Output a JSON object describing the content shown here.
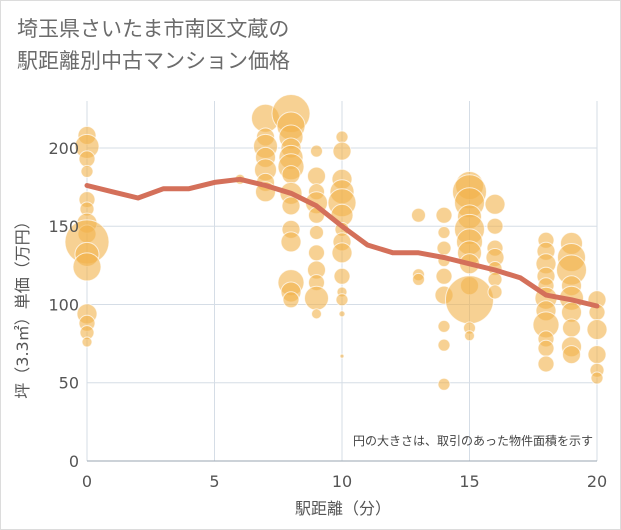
{
  "title_lines": [
    "埼玉県さいたま市南区文蔵の",
    "駅距離別中古マンション価格"
  ],
  "chart_data": {
    "type": "scatter",
    "xlabel": "駅距離（分）",
    "ylabel": "坪（3.3㎡）単価（万円）",
    "xlim": [
      0,
      20
    ],
    "ylim": [
      0,
      230
    ],
    "x_ticks": [
      0,
      5,
      10,
      15,
      20
    ],
    "y_ticks": [
      0,
      50,
      100,
      150,
      200
    ],
    "grid": true,
    "annotation": "円の大きさは、取引のあった物件面積を示す",
    "bubble_color": "#f2b24b",
    "line_color": "#d4705a",
    "points": [
      {
        "x": 0,
        "y": 208,
        "s": 9
      },
      {
        "x": 0,
        "y": 201,
        "s": 12
      },
      {
        "x": 0,
        "y": 193,
        "s": 8
      },
      {
        "x": 0,
        "y": 185,
        "s": 6
      },
      {
        "x": 0,
        "y": 167,
        "s": 8
      },
      {
        "x": 0,
        "y": 161,
        "s": 7
      },
      {
        "x": 0,
        "y": 152,
        "s": 10
      },
      {
        "x": 0,
        "y": 145,
        "s": 9
      },
      {
        "x": 0,
        "y": 140,
        "s": 22
      },
      {
        "x": 0,
        "y": 132,
        "s": 12
      },
      {
        "x": 0,
        "y": 124,
        "s": 14
      },
      {
        "x": 0,
        "y": 94,
        "s": 10
      },
      {
        "x": 0,
        "y": 88,
        "s": 8
      },
      {
        "x": 0,
        "y": 82,
        "s": 7
      },
      {
        "x": 0,
        "y": 76,
        "s": 5
      },
      {
        "x": 6,
        "y": 180,
        "s": 5
      },
      {
        "x": 7,
        "y": 219,
        "s": 14
      },
      {
        "x": 7,
        "y": 207,
        "s": 9
      },
      {
        "x": 7,
        "y": 201,
        "s": 12
      },
      {
        "x": 7,
        "y": 194,
        "s": 10
      },
      {
        "x": 7,
        "y": 186,
        "s": 11
      },
      {
        "x": 7,
        "y": 178,
        "s": 9
      },
      {
        "x": 7,
        "y": 172,
        "s": 10
      },
      {
        "x": 8,
        "y": 222,
        "s": 19
      },
      {
        "x": 8,
        "y": 214,
        "s": 14
      },
      {
        "x": 8,
        "y": 207,
        "s": 12
      },
      {
        "x": 8,
        "y": 200,
        "s": 10
      },
      {
        "x": 8,
        "y": 194,
        "s": 12
      },
      {
        "x": 8,
        "y": 188,
        "s": 13
      },
      {
        "x": 8,
        "y": 183,
        "s": 9
      },
      {
        "x": 8,
        "y": 171,
        "s": 11
      },
      {
        "x": 8,
        "y": 163,
        "s": 9
      },
      {
        "x": 8,
        "y": 148,
        "s": 9
      },
      {
        "x": 8,
        "y": 140,
        "s": 10
      },
      {
        "x": 8,
        "y": 114,
        "s": 13
      },
      {
        "x": 8,
        "y": 108,
        "s": 10
      },
      {
        "x": 8,
        "y": 103,
        "s": 8
      },
      {
        "x": 9,
        "y": 198,
        "s": 6
      },
      {
        "x": 9,
        "y": 182,
        "s": 9
      },
      {
        "x": 9,
        "y": 172,
        "s": 8
      },
      {
        "x": 9,
        "y": 165,
        "s": 11
      },
      {
        "x": 9,
        "y": 157,
        "s": 8
      },
      {
        "x": 9,
        "y": 146,
        "s": 7
      },
      {
        "x": 9,
        "y": 133,
        "s": 8
      },
      {
        "x": 9,
        "y": 122,
        "s": 9
      },
      {
        "x": 9,
        "y": 114,
        "s": 8
      },
      {
        "x": 9,
        "y": 104,
        "s": 12
      },
      {
        "x": 9,
        "y": 94,
        "s": 5
      },
      {
        "x": 10,
        "y": 207,
        "s": 6
      },
      {
        "x": 10,
        "y": 198,
        "s": 9
      },
      {
        "x": 10,
        "y": 180,
        "s": 10
      },
      {
        "x": 10,
        "y": 172,
        "s": 12
      },
      {
        "x": 10,
        "y": 165,
        "s": 14
      },
      {
        "x": 10,
        "y": 157,
        "s": 11
      },
      {
        "x": 10,
        "y": 148,
        "s": 7
      },
      {
        "x": 10,
        "y": 140,
        "s": 9
      },
      {
        "x": 10,
        "y": 133,
        "s": 10
      },
      {
        "x": 10,
        "y": 118,
        "s": 8
      },
      {
        "x": 10,
        "y": 108,
        "s": 5
      },
      {
        "x": 10,
        "y": 103,
        "s": 6
      },
      {
        "x": 10,
        "y": 94,
        "s": 3
      },
      {
        "x": 10,
        "y": 67,
        "s": 2
      },
      {
        "x": 13,
        "y": 157,
        "s": 7
      },
      {
        "x": 13,
        "y": 119,
        "s": 6
      },
      {
        "x": 13,
        "y": 116,
        "s": 6
      },
      {
        "x": 14,
        "y": 157,
        "s": 8
      },
      {
        "x": 14,
        "y": 146,
        "s": 6
      },
      {
        "x": 14,
        "y": 136,
        "s": 7
      },
      {
        "x": 14,
        "y": 128,
        "s": 6
      },
      {
        "x": 14,
        "y": 118,
        "s": 8
      },
      {
        "x": 14,
        "y": 106,
        "s": 9
      },
      {
        "x": 14,
        "y": 86,
        "s": 6
      },
      {
        "x": 14,
        "y": 74,
        "s": 6
      },
      {
        "x": 14,
        "y": 49,
        "s": 6
      },
      {
        "x": 15,
        "y": 176,
        "s": 14
      },
      {
        "x": 15,
        "y": 172,
        "s": 17
      },
      {
        "x": 15,
        "y": 165,
        "s": 15
      },
      {
        "x": 15,
        "y": 156,
        "s": 12
      },
      {
        "x": 15,
        "y": 148,
        "s": 15
      },
      {
        "x": 15,
        "y": 140,
        "s": 13
      },
      {
        "x": 15,
        "y": 133,
        "s": 12
      },
      {
        "x": 15,
        "y": 126,
        "s": 10
      },
      {
        "x": 15,
        "y": 112,
        "s": 9
      },
      {
        "x": 15,
        "y": 103,
        "s": 24
      },
      {
        "x": 15,
        "y": 85,
        "s": 6
      },
      {
        "x": 15,
        "y": 80,
        "s": 5
      },
      {
        "x": 16,
        "y": 164,
        "s": 10
      },
      {
        "x": 16,
        "y": 150,
        "s": 8
      },
      {
        "x": 16,
        "y": 136,
        "s": 8
      },
      {
        "x": 16,
        "y": 130,
        "s": 9
      },
      {
        "x": 16,
        "y": 123,
        "s": 7
      },
      {
        "x": 16,
        "y": 116,
        "s": 7
      },
      {
        "x": 16,
        "y": 108,
        "s": 7
      },
      {
        "x": 18,
        "y": 141,
        "s": 8
      },
      {
        "x": 18,
        "y": 134,
        "s": 9
      },
      {
        "x": 18,
        "y": 126,
        "s": 10
      },
      {
        "x": 18,
        "y": 118,
        "s": 9
      },
      {
        "x": 18,
        "y": 112,
        "s": 8
      },
      {
        "x": 18,
        "y": 104,
        "s": 11
      },
      {
        "x": 18,
        "y": 96,
        "s": 10
      },
      {
        "x": 18,
        "y": 87,
        "s": 13
      },
      {
        "x": 18,
        "y": 78,
        "s": 8
      },
      {
        "x": 18,
        "y": 72,
        "s": 8
      },
      {
        "x": 18,
        "y": 62,
        "s": 8
      },
      {
        "x": 19,
        "y": 139,
        "s": 11
      },
      {
        "x": 19,
        "y": 130,
        "s": 14
      },
      {
        "x": 19,
        "y": 122,
        "s": 15
      },
      {
        "x": 19,
        "y": 112,
        "s": 10
      },
      {
        "x": 19,
        "y": 104,
        "s": 12
      },
      {
        "x": 19,
        "y": 95,
        "s": 10
      },
      {
        "x": 19,
        "y": 85,
        "s": 9
      },
      {
        "x": 19,
        "y": 73,
        "s": 10
      },
      {
        "x": 19,
        "y": 68,
        "s": 9
      },
      {
        "x": 20,
        "y": 103,
        "s": 9
      },
      {
        "x": 20,
        "y": 95,
        "s": 8
      },
      {
        "x": 20,
        "y": 84,
        "s": 10
      },
      {
        "x": 20,
        "y": 68,
        "s": 9
      },
      {
        "x": 20,
        "y": 58,
        "s": 7
      },
      {
        "x": 20,
        "y": 53,
        "s": 6
      }
    ],
    "trend": [
      {
        "x": 0,
        "y": 176
      },
      {
        "x": 1,
        "y": 172
      },
      {
        "x": 2,
        "y": 168
      },
      {
        "x": 3,
        "y": 174
      },
      {
        "x": 4,
        "y": 174
      },
      {
        "x": 5,
        "y": 178
      },
      {
        "x": 6,
        "y": 180
      },
      {
        "x": 7,
        "y": 176
      },
      {
        "x": 8,
        "y": 171
      },
      {
        "x": 9,
        "y": 163
      },
      {
        "x": 10,
        "y": 150
      },
      {
        "x": 11,
        "y": 138
      },
      {
        "x": 12,
        "y": 133
      },
      {
        "x": 13,
        "y": 133
      },
      {
        "x": 14,
        "y": 130
      },
      {
        "x": 15,
        "y": 126
      },
      {
        "x": 16,
        "y": 122
      },
      {
        "x": 17,
        "y": 117
      },
      {
        "x": 18,
        "y": 106
      },
      {
        "x": 19,
        "y": 103
      },
      {
        "x": 20,
        "y": 99
      }
    ]
  }
}
